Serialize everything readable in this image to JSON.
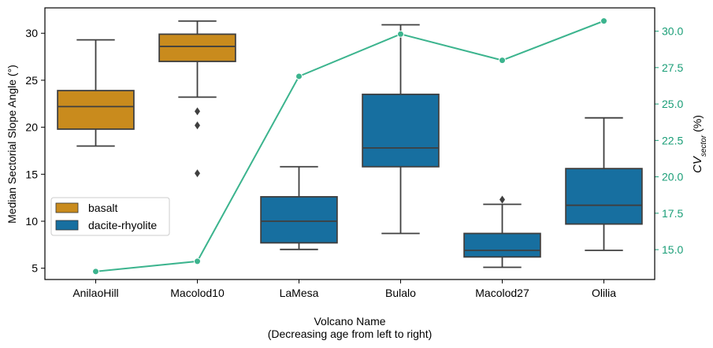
{
  "chart_data": {
    "type": "box",
    "title": "",
    "xlabel_line1": "Volcano Name",
    "xlabel_line2": "(Decreasing age from left to right)",
    "ylabel": "Median Sectorial Slope Angle (°)",
    "y2label_main": "CV",
    "y2label_sub": "sector",
    "y2label_suffix": " (%)",
    "ylim": [
      3.8,
      32.7
    ],
    "y2lim": [
      12.95,
      31.6
    ],
    "yticks": [
      5,
      10,
      15,
      20,
      25,
      30
    ],
    "y2ticks": [
      15.0,
      17.5,
      20.0,
      22.5,
      25.0,
      27.5,
      30.0
    ],
    "y2tick_labels": [
      "15.0",
      "17.5",
      "20.0",
      "22.5",
      "25.0",
      "27.5",
      "30.0"
    ],
    "categories": [
      "AnilaoHill",
      "Macolod10",
      "LaMesa",
      "Bulalo",
      "Macolod27",
      "Olilia"
    ],
    "legend": {
      "position": "center-left",
      "entries": [
        {
          "label": "basalt",
          "color": "#c98b1d"
        },
        {
          "label": "dacite-rhyolite",
          "color": "#176fa0"
        }
      ]
    },
    "boxes": [
      {
        "category": "AnilaoHill",
        "group": "basalt",
        "whisker_low": 18.0,
        "q1": 19.8,
        "median": 22.2,
        "q3": 23.9,
        "whisker_high": 29.3,
        "outliers": []
      },
      {
        "category": "Macolod10",
        "group": "basalt",
        "whisker_low": 23.2,
        "q1": 27.0,
        "median": 28.6,
        "q3": 29.9,
        "whisker_high": 31.3,
        "outliers": [
          21.7,
          20.2,
          15.1
        ]
      },
      {
        "category": "LaMesa",
        "group": "dacite-rhyolite",
        "whisker_low": 7.0,
        "q1": 7.7,
        "median": 10.0,
        "q3": 12.6,
        "whisker_high": 15.8,
        "outliers": []
      },
      {
        "category": "Bulalo",
        "group": "dacite-rhyolite",
        "whisker_low": 8.7,
        "q1": 15.8,
        "median": 17.8,
        "q3": 23.5,
        "whisker_high": 30.9,
        "outliers": []
      },
      {
        "category": "Macolod27",
        "group": "dacite-rhyolite",
        "whisker_low": 5.1,
        "q1": 6.2,
        "median": 6.9,
        "q3": 8.7,
        "whisker_high": 11.8,
        "outliers": [
          12.3
        ]
      },
      {
        "category": "Olilia",
        "group": "dacite-rhyolite",
        "whisker_low": 6.9,
        "q1": 9.7,
        "median": 11.7,
        "q3": 15.6,
        "whisker_high": 21.0,
        "outliers": []
      }
    ],
    "cv_series": {
      "name": "CV sector (%)",
      "axis": "right",
      "color": "#3cb48e",
      "values": [
        13.5,
        14.2,
        26.9,
        29.8,
        28.0,
        30.7
      ]
    },
    "right_axis_color": "#1a9e77"
  }
}
